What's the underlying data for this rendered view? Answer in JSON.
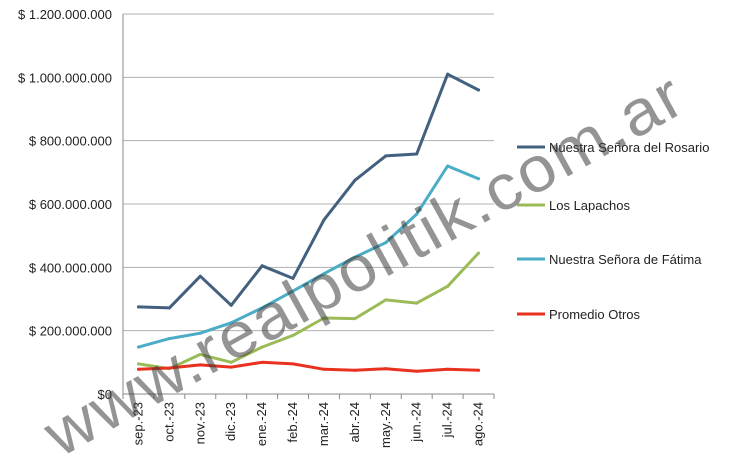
{
  "chart_data": {
    "type": "line",
    "categories": [
      "sep.-23",
      "oct.-23",
      "nov.-23",
      "dic.-23",
      "ene.-24",
      "feb.-24",
      "mar.-24",
      "abr.-24",
      "may.-24",
      "jun.-24",
      "jul.-24",
      "ago.-24"
    ],
    "ylim": [
      0,
      1200000000
    ],
    "yticks": [
      0,
      200000000,
      400000000,
      600000000,
      800000000,
      1000000000,
      1200000000
    ],
    "ytick_labels": [
      "$0",
      "$ 200.000.000",
      "$ 400.000.000",
      "$ 600.000.000",
      "$ 800.000.000",
      "$ 1.000.000.000",
      "$ 1.200.000.000"
    ],
    "grid": "horizontal",
    "legend_position": "right",
    "series": [
      {
        "name": "Nuestra Señora del Rosario",
        "color": "#44607f",
        "values": [
          275000000,
          272000000,
          372000000,
          280000000,
          405000000,
          365000000,
          550000000,
          675000000,
          752000000,
          758000000,
          1010000000,
          960000000
        ]
      },
      {
        "name": "Los Lapachos",
        "color": "#9bbb59",
        "values": [
          95000000,
          80000000,
          125000000,
          100000000,
          148000000,
          185000000,
          240000000,
          238000000,
          297000000,
          287000000,
          340000000,
          445000000
        ]
      },
      {
        "name": "Nuestra Señora de Fátima",
        "color": "#4bacc6",
        "values": [
          148000000,
          175000000,
          192000000,
          225000000,
          272000000,
          325000000,
          380000000,
          432000000,
          478000000,
          568000000,
          720000000,
          680000000
        ]
      },
      {
        "name": "Promedio Otros",
        "color": "#e8321f",
        "values": [
          78000000,
          82000000,
          92000000,
          85000000,
          100000000,
          95000000,
          78000000,
          75000000,
          80000000,
          72000000,
          78000000,
          75000000
        ]
      }
    ]
  },
  "watermark": {
    "text": "www.realpolitik.com.ar",
    "color": "#3c3c3c"
  }
}
